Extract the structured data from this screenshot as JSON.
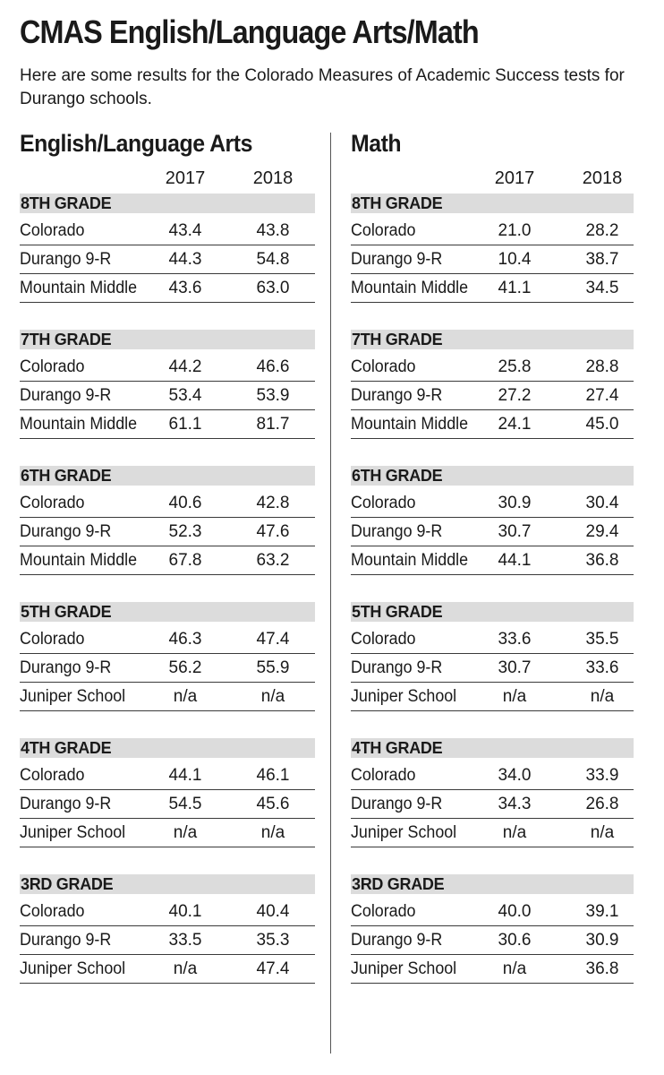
{
  "title": "CMAS English/Language Arts/Math",
  "subtitle": "Here are some results for the Colorado Measures of Academic Success tests for Durango schools.",
  "chart_data": [
    {
      "type": "table",
      "title": "English/Language Arts",
      "years": [
        "2017",
        "2018"
      ],
      "grades": [
        {
          "label": "8TH GRADE",
          "rows": [
            {
              "name": "Colorado",
              "values": [
                "43.4",
                "43.8"
              ]
            },
            {
              "name": "Durango 9-R",
              "values": [
                "44.3",
                "54.8"
              ]
            },
            {
              "name": "Mountain Middle",
              "values": [
                "43.6",
                "63.0"
              ]
            }
          ]
        },
        {
          "label": "7TH GRADE",
          "rows": [
            {
              "name": "Colorado",
              "values": [
                "44.2",
                "46.6"
              ]
            },
            {
              "name": "Durango 9-R",
              "values": [
                "53.4",
                "53.9"
              ]
            },
            {
              "name": "Mountain Middle",
              "values": [
                "61.1",
                "81.7"
              ]
            }
          ]
        },
        {
          "label": "6TH GRADE",
          "rows": [
            {
              "name": "Colorado",
              "values": [
                "40.6",
                "42.8"
              ]
            },
            {
              "name": "Durango 9-R",
              "values": [
                "52.3",
                "47.6"
              ]
            },
            {
              "name": "Mountain Middle",
              "values": [
                "67.8",
                "63.2"
              ]
            }
          ]
        },
        {
          "label": "5TH GRADE",
          "rows": [
            {
              "name": "Colorado",
              "values": [
                "46.3",
                "47.4"
              ]
            },
            {
              "name": "Durango 9-R",
              "values": [
                "56.2",
                "55.9"
              ]
            },
            {
              "name": "Juniper School",
              "values": [
                "n/a",
                "n/a"
              ]
            }
          ]
        },
        {
          "label": "4TH GRADE",
          "rows": [
            {
              "name": "Colorado",
              "values": [
                "44.1",
                "46.1"
              ]
            },
            {
              "name": "Durango 9-R",
              "values": [
                "54.5",
                "45.6"
              ]
            },
            {
              "name": "Juniper School",
              "values": [
                "n/a",
                "n/a"
              ]
            }
          ]
        },
        {
          "label": "3RD GRADE",
          "rows": [
            {
              "name": "Colorado",
              "values": [
                "40.1",
                "40.4"
              ]
            },
            {
              "name": "Durango 9-R",
              "values": [
                "33.5",
                "35.3"
              ]
            },
            {
              "name": "Juniper School",
              "values": [
                "n/a",
                "47.4"
              ]
            }
          ]
        }
      ]
    },
    {
      "type": "table",
      "title": "Math",
      "years": [
        "2017",
        "2018"
      ],
      "grades": [
        {
          "label": "8TH GRADE",
          "rows": [
            {
              "name": "Colorado",
              "values": [
                "21.0",
                "28.2"
              ]
            },
            {
              "name": "Durango 9-R",
              "values": [
                "10.4",
                "38.7"
              ]
            },
            {
              "name": "Mountain Middle",
              "values": [
                "41.1",
                "34.5"
              ]
            }
          ]
        },
        {
          "label": "7TH GRADE",
          "rows": [
            {
              "name": "Colorado",
              "values": [
                "25.8",
                "28.8"
              ]
            },
            {
              "name": "Durango 9-R",
              "values": [
                "27.2",
                "27.4"
              ]
            },
            {
              "name": "Mountain Middle",
              "values": [
                "24.1",
                "45.0"
              ]
            }
          ]
        },
        {
          "label": "6TH GRADE",
          "rows": [
            {
              "name": "Colorado",
              "values": [
                "30.9",
                "30.4"
              ]
            },
            {
              "name": "Durango 9-R",
              "values": [
                "30.7",
                "29.4"
              ]
            },
            {
              "name": "Mountain Middle",
              "values": [
                "44.1",
                "36.8"
              ]
            }
          ]
        },
        {
          "label": "5TH GRADE",
          "rows": [
            {
              "name": "Colorado",
              "values": [
                "33.6",
                "35.5"
              ]
            },
            {
              "name": "Durango 9-R",
              "values": [
                "30.7",
                "33.6"
              ]
            },
            {
              "name": "Juniper School",
              "values": [
                "n/a",
                "n/a"
              ]
            }
          ]
        },
        {
          "label": "4TH GRADE",
          "rows": [
            {
              "name": "Colorado",
              "values": [
                "34.0",
                "33.9"
              ]
            },
            {
              "name": "Durango 9-R",
              "values": [
                "34.3",
                "26.8"
              ]
            },
            {
              "name": "Juniper School",
              "values": [
                "n/a",
                "n/a"
              ]
            }
          ]
        },
        {
          "label": "3RD GRADE",
          "rows": [
            {
              "name": "Colorado",
              "values": [
                "40.0",
                "39.1"
              ]
            },
            {
              "name": "Durango 9-R",
              "values": [
                "30.6",
                "30.9"
              ]
            },
            {
              "name": "Juniper School",
              "values": [
                "n/a",
                "36.8"
              ]
            }
          ]
        }
      ]
    }
  ]
}
